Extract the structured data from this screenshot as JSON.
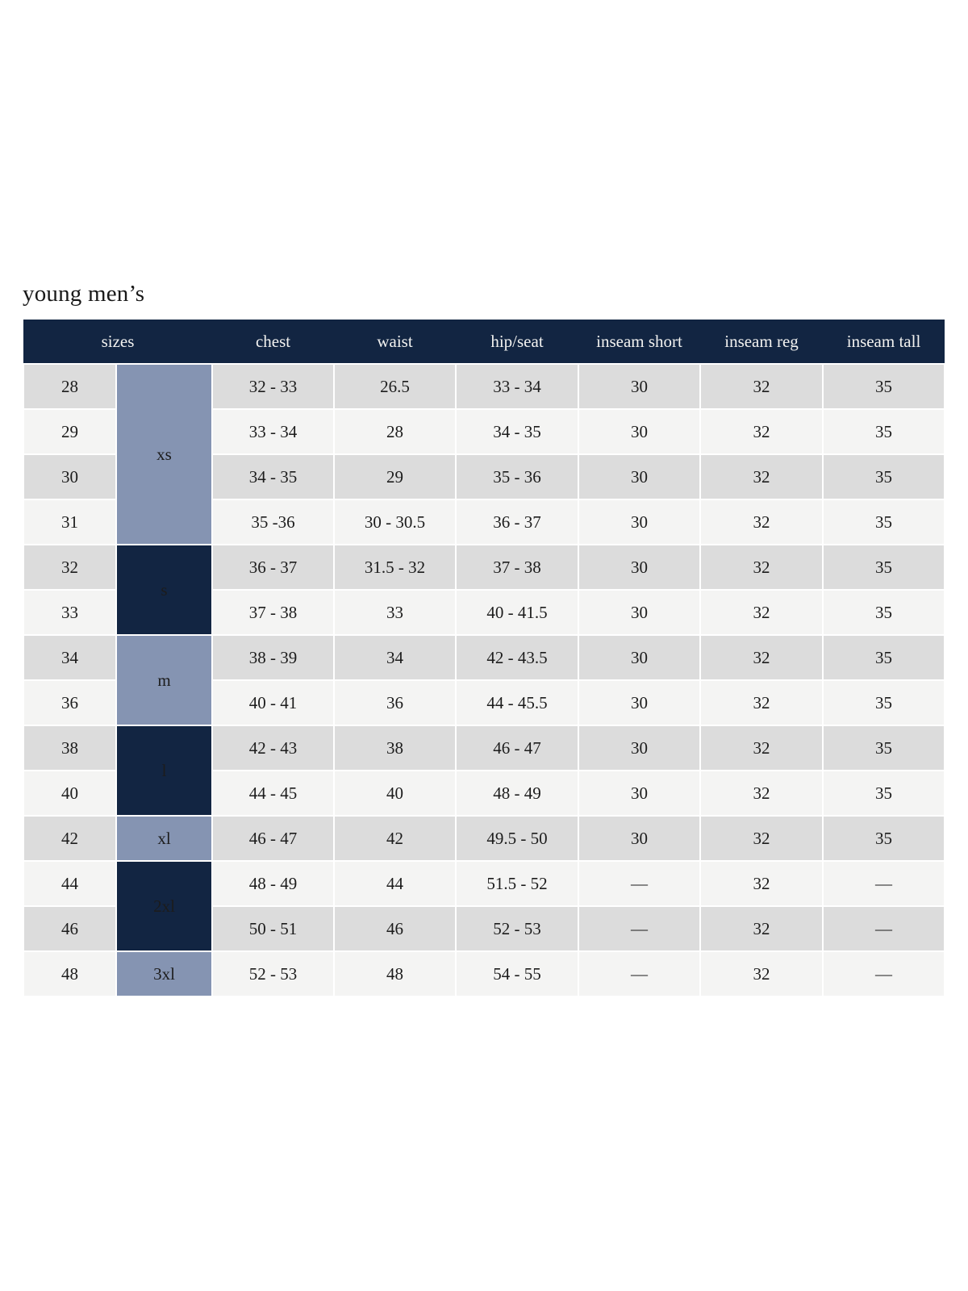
{
  "page": {
    "title": "young men’s"
  },
  "colors": {
    "header_navy": "#122542",
    "group_dark_navy": "#122542",
    "group_steel_blue": "#8594b2",
    "row_stripe_gray": "#dcdcdc",
    "row_stripe_light": "#f4f4f3",
    "header_text": "#f2f2f0",
    "cell_text": "#1c1c1c"
  },
  "table": {
    "columns": [
      "sizes",
      "chest",
      "waist",
      "hip/seat",
      "inseam short",
      "inseam reg",
      "inseam tall"
    ],
    "size_groups": [
      {
        "label": "xs",
        "rowspan": 4,
        "style": "light"
      },
      {
        "label": "s",
        "rowspan": 2,
        "style": "dark"
      },
      {
        "label": "m",
        "rowspan": 2,
        "style": "light"
      },
      {
        "label": "l",
        "rowspan": 2,
        "style": "dark"
      },
      {
        "label": "xl",
        "rowspan": 1,
        "style": "light"
      },
      {
        "label": "2xl",
        "rowspan": 2,
        "style": "dark"
      },
      {
        "label": "3xl",
        "rowspan": 1,
        "style": "light"
      }
    ],
    "rows": [
      {
        "size": "28",
        "chest": "32 - 33",
        "waist": "26.5",
        "hip_seat": "33 - 34",
        "inseam_short": "30",
        "inseam_reg": "32",
        "inseam_tall": "35"
      },
      {
        "size": "29",
        "chest": "33 - 34",
        "waist": "28",
        "hip_seat": "34 - 35",
        "inseam_short": "30",
        "inseam_reg": "32",
        "inseam_tall": "35"
      },
      {
        "size": "30",
        "chest": "34 - 35",
        "waist": "29",
        "hip_seat": "35 - 36",
        "inseam_short": "30",
        "inseam_reg": "32",
        "inseam_tall": "35"
      },
      {
        "size": "31",
        "chest": "35 -36",
        "waist": "30 - 30.5",
        "hip_seat": "36 - 37",
        "inseam_short": "30",
        "inseam_reg": "32",
        "inseam_tall": "35"
      },
      {
        "size": "32",
        "chest": "36 - 37",
        "waist": "31.5 - 32",
        "hip_seat": "37 - 38",
        "inseam_short": "30",
        "inseam_reg": "32",
        "inseam_tall": "35"
      },
      {
        "size": "33",
        "chest": "37 - 38",
        "waist": "33",
        "hip_seat": "40 - 41.5",
        "inseam_short": "30",
        "inseam_reg": "32",
        "inseam_tall": "35"
      },
      {
        "size": "34",
        "chest": "38 - 39",
        "waist": "34",
        "hip_seat": "42 - 43.5",
        "inseam_short": "30",
        "inseam_reg": "32",
        "inseam_tall": "35"
      },
      {
        "size": "36",
        "chest": "40 - 41",
        "waist": "36",
        "hip_seat": "44 - 45.5",
        "inseam_short": "30",
        "inseam_reg": "32",
        "inseam_tall": "35"
      },
      {
        "size": "38",
        "chest": "42 - 43",
        "waist": "38",
        "hip_seat": "46 - 47",
        "inseam_short": "30",
        "inseam_reg": "32",
        "inseam_tall": "35"
      },
      {
        "size": "40",
        "chest": "44 - 45",
        "waist": "40",
        "hip_seat": "48 - 49",
        "inseam_short": "30",
        "inseam_reg": "32",
        "inseam_tall": "35"
      },
      {
        "size": "42",
        "chest": "46 - 47",
        "waist": "42",
        "hip_seat": "49.5 - 50",
        "inseam_short": "30",
        "inseam_reg": "32",
        "inseam_tall": "35"
      },
      {
        "size": "44",
        "chest": "48 - 49",
        "waist": "44",
        "hip_seat": "51.5 - 52",
        "inseam_short": "—",
        "inseam_reg": "32",
        "inseam_tall": "—"
      },
      {
        "size": "46",
        "chest": "50 - 51",
        "waist": "46",
        "hip_seat": "52 - 53",
        "inseam_short": "—",
        "inseam_reg": "32",
        "inseam_tall": "—"
      },
      {
        "size": "48",
        "chest": "52 - 53",
        "waist": "48",
        "hip_seat": "54 - 55",
        "inseam_short": "—",
        "inseam_reg": "32",
        "inseam_tall": "—"
      }
    ]
  }
}
